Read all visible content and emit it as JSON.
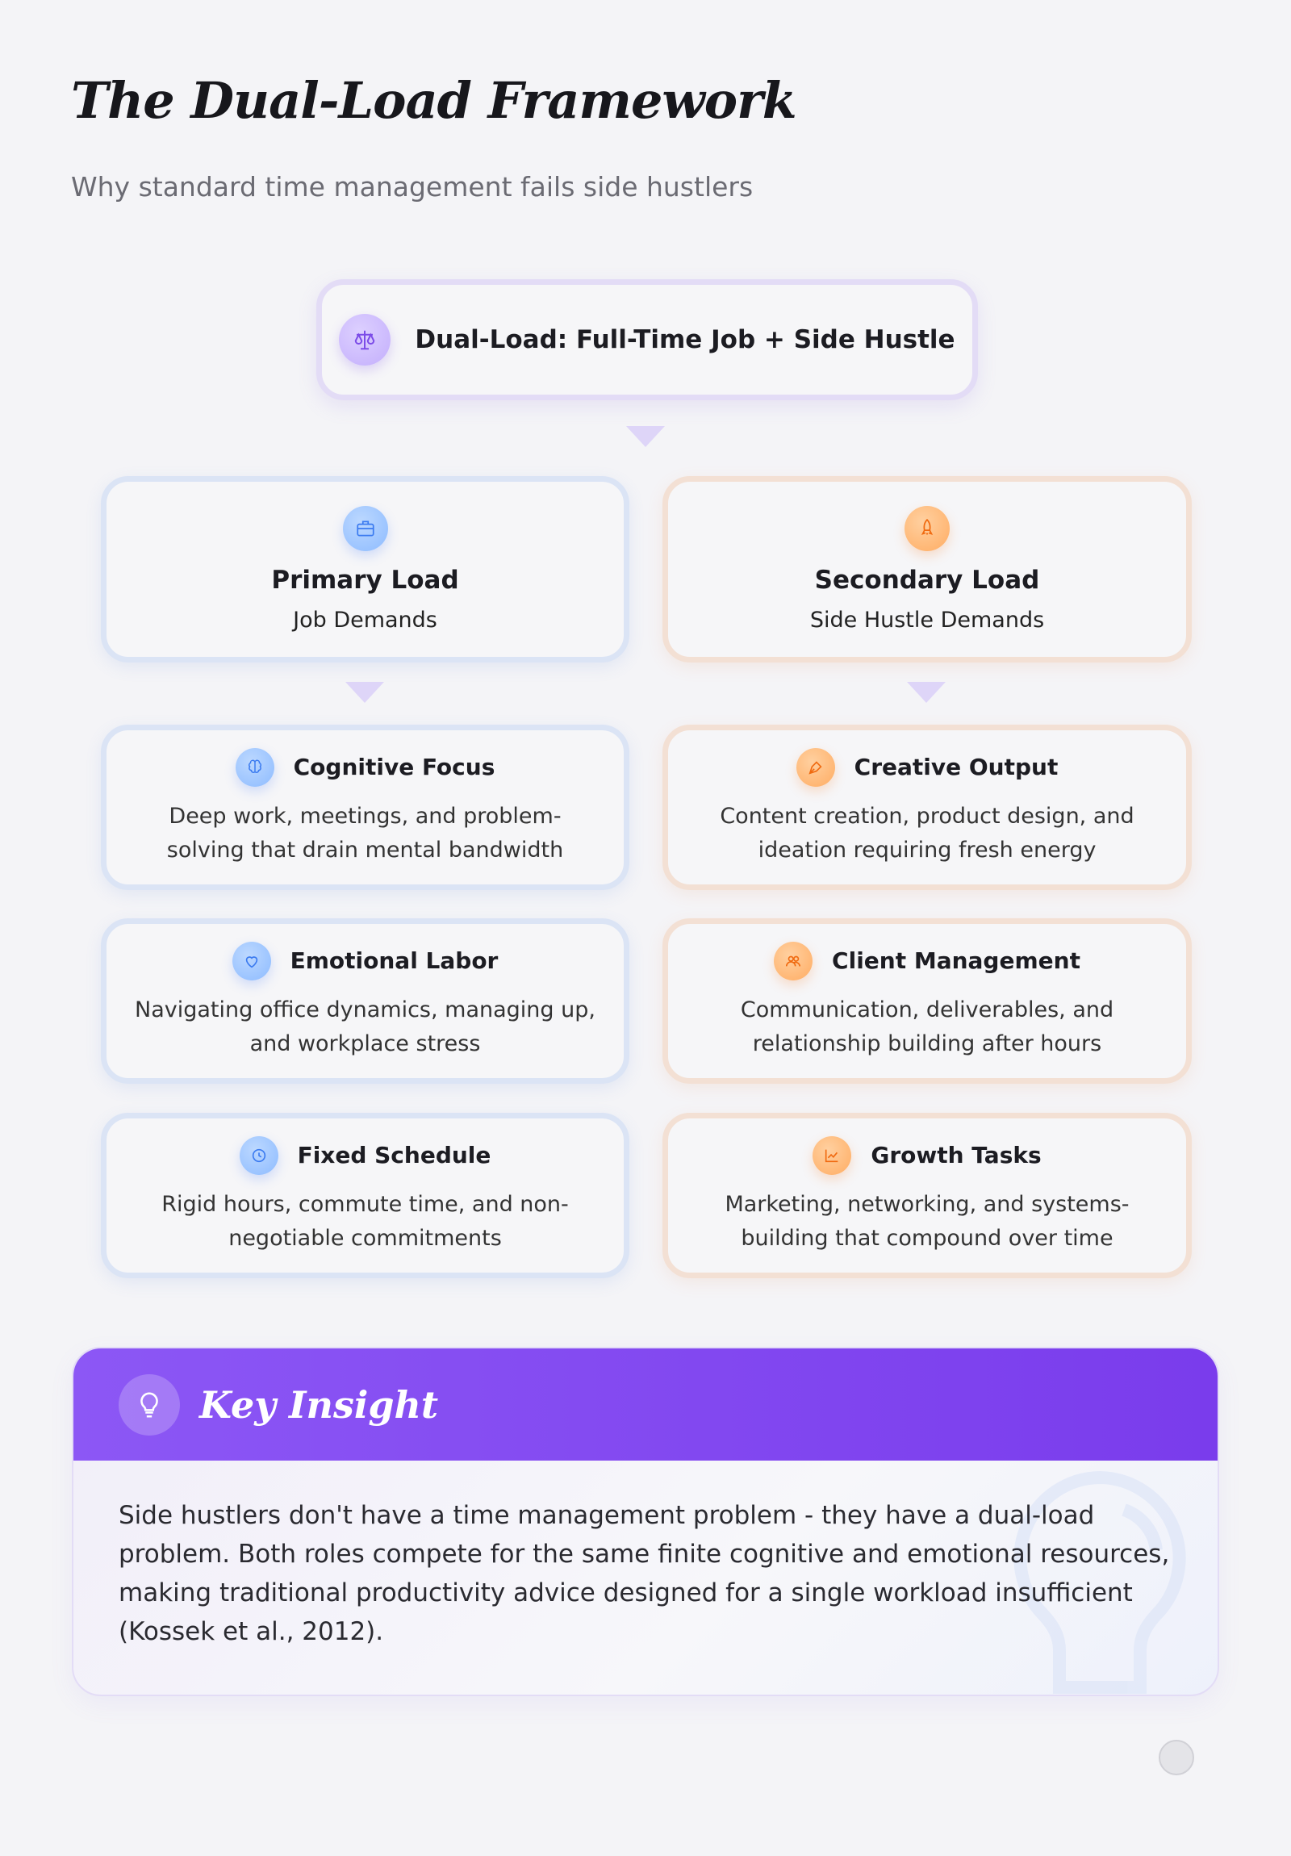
{
  "header": {
    "title": "The Dual-Load Framework",
    "subtitle": "Why standard time management fails side hustlers"
  },
  "top": {
    "label": "Dual-Load: Full-Time Job + Side Hustle",
    "icon": "scale-icon"
  },
  "primary": {
    "title": "Primary Load",
    "subtitle": "Job Demands",
    "icon": "briefcase-icon",
    "color": "#8dbbff",
    "items": [
      {
        "title": "Cognitive Focus",
        "text": "Deep work, meetings, and problem-solving that drain mental bandwidth",
        "icon": "brain-icon"
      },
      {
        "title": "Emotional Labor",
        "text": "Navigating office dynamics, managing up, and workplace stress",
        "icon": "heart-icon"
      },
      {
        "title": "Fixed Schedule",
        "text": "Rigid hours, commute time, and non-negotiable commitments",
        "icon": "clock-icon"
      }
    ]
  },
  "secondary": {
    "title": "Secondary Load",
    "subtitle": "Side Hustle Demands",
    "icon": "rocket-icon",
    "color": "#ffac62",
    "items": [
      {
        "title": "Creative Output",
        "text": "Content creation, product design, and ideation requiring fresh energy",
        "icon": "pen-icon"
      },
      {
        "title": "Client Management",
        "text": "Communication, deliverables, and relationship building after hours",
        "icon": "users-icon"
      },
      {
        "title": "Growth Tasks",
        "text": "Marketing, networking, and systems-building that compound over time",
        "icon": "chart-icon"
      }
    ]
  },
  "insight": {
    "title": "Key Insight",
    "icon": "lightbulb-icon",
    "text": "Side hustlers don't have a time management problem - they have a dual-load problem. Both roles compete for the same finite cognitive and emotional resources, making traditional productivity advice designed for a single workload insufficient (Kossek et al., 2012).",
    "accent": "#7f44ee"
  }
}
